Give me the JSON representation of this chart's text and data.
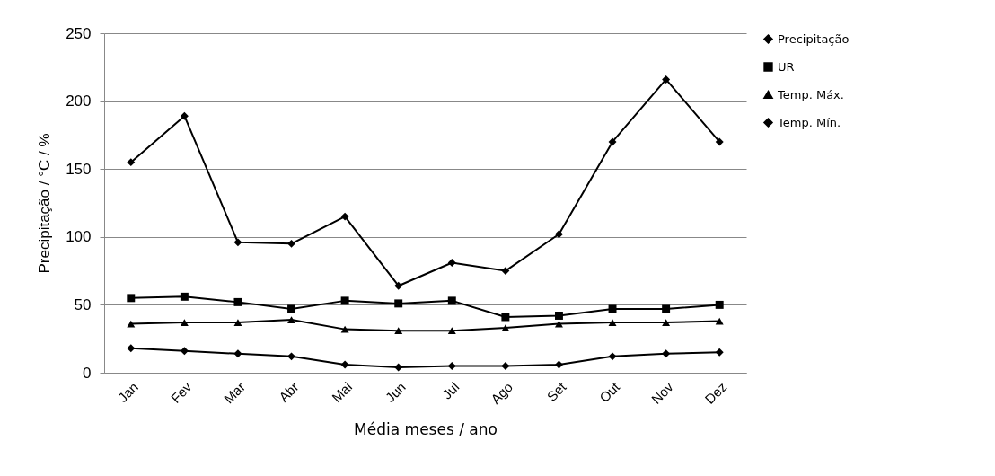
{
  "chart_data": {
    "type": "line",
    "xlabel": "Média meses / ano",
    "ylabel": "Precipitação / °C / %",
    "categories": [
      "Jan",
      "Fev",
      "Mar",
      "Abr",
      "Mai",
      "Jun",
      "Jul",
      "Ago",
      "Set",
      "Out",
      "Nov",
      "Dez"
    ],
    "series": [
      {
        "name": "Precipitação",
        "color": "#000000",
        "marker": "diamond",
        "values": [
          155,
          189,
          96,
          95,
          115,
          64,
          81,
          75,
          102,
          170,
          216,
          170
        ]
      },
      {
        "name": "UR",
        "color": "#000000",
        "marker": "square",
        "values": [
          55,
          56,
          52,
          47,
          53,
          51,
          53,
          41,
          42,
          47,
          47,
          50
        ]
      },
      {
        "name": "Temp. Máx.",
        "color": "#000000",
        "marker": "triangle",
        "values": [
          36,
          37,
          37,
          39,
          32,
          31,
          31,
          33,
          36,
          37,
          37,
          38
        ]
      },
      {
        "name": "Temp. Mín.",
        "color": "#000000",
        "marker": "diamond",
        "values": [
          18,
          16,
          14,
          12,
          6,
          4,
          5,
          5,
          6,
          12,
          14,
          15
        ]
      }
    ],
    "ylim": [
      0,
      250
    ],
    "yticks": [
      0,
      50,
      100,
      150,
      200,
      250
    ],
    "grid": "y",
    "legend": "right",
    "line_style": "solid"
  }
}
